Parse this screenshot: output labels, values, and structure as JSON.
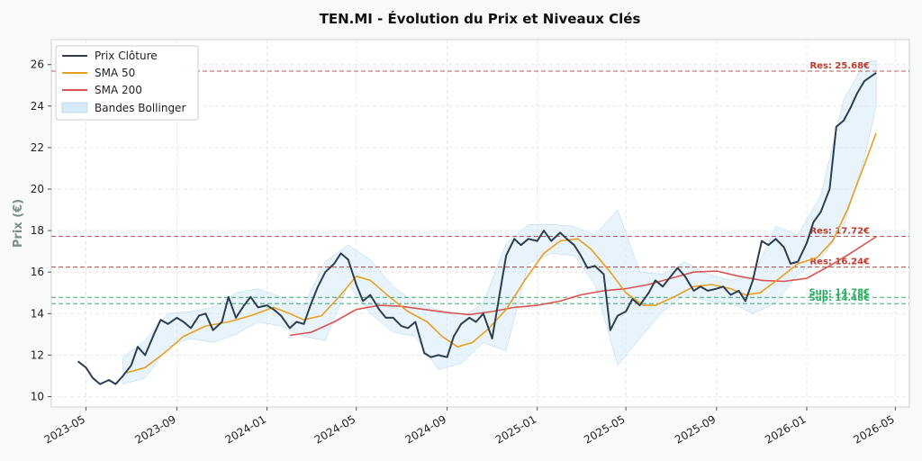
{
  "chart_data": {
    "type": "line",
    "title": "TEN.MI - Évolution du Prix et Niveaux Clés",
    "xlabel": "",
    "ylabel": "Prix (€)",
    "ylim": [
      9.5,
      27.2
    ],
    "xlim": [
      "2023-03-15",
      "2026-05-20"
    ],
    "yticks": [
      10,
      12,
      14,
      16,
      18,
      20,
      22,
      24,
      26
    ],
    "xticks": [
      "2023-05",
      "2023-09",
      "2024-01",
      "2024-05",
      "2024-09",
      "2025-01",
      "2025-05",
      "2025-09",
      "2026-01",
      "2026-05"
    ],
    "grid": true,
    "legend_position": "top-left",
    "colors": {
      "close": "#2c3e50",
      "sma50": "#e8a020",
      "sma200": "#d9534f",
      "bollinger": "#d6eaf8",
      "resistance": "#c0392b",
      "support": "#27ae60"
    },
    "series": [
      {
        "name": "Prix Clôture",
        "points": [
          [
            "2023-04-20",
            11.7
          ],
          [
            "2023-05-01",
            11.4
          ],
          [
            "2023-05-10",
            10.9
          ],
          [
            "2023-05-20",
            10.6
          ],
          [
            "2023-06-01",
            10.8
          ],
          [
            "2023-06-10",
            10.6
          ],
          [
            "2023-06-20",
            11.0
          ],
          [
            "2023-07-01",
            11.5
          ],
          [
            "2023-07-10",
            12.4
          ],
          [
            "2023-07-20",
            12.0
          ],
          [
            "2023-08-01",
            13.0
          ],
          [
            "2023-08-10",
            13.7
          ],
          [
            "2023-08-20",
            13.5
          ],
          [
            "2023-09-01",
            13.8
          ],
          [
            "2023-09-10",
            13.6
          ],
          [
            "2023-09-20",
            13.3
          ],
          [
            "2023-10-01",
            13.9
          ],
          [
            "2023-10-10",
            14.0
          ],
          [
            "2023-10-20",
            13.2
          ],
          [
            "2023-11-01",
            13.6
          ],
          [
            "2023-11-10",
            14.8
          ],
          [
            "2023-11-20",
            13.8
          ],
          [
            "2023-12-01",
            14.4
          ],
          [
            "2023-12-10",
            14.8
          ],
          [
            "2023-12-20",
            14.3
          ],
          [
            "2024-01-01",
            14.4
          ],
          [
            "2024-01-10",
            14.2
          ],
          [
            "2024-01-20",
            13.9
          ],
          [
            "2024-02-01",
            13.3
          ],
          [
            "2024-02-10",
            13.6
          ],
          [
            "2024-02-20",
            13.5
          ],
          [
            "2024-03-01",
            14.5
          ],
          [
            "2024-03-10",
            15.3
          ],
          [
            "2024-03-20",
            16.0
          ],
          [
            "2024-04-01",
            16.4
          ],
          [
            "2024-04-10",
            16.9
          ],
          [
            "2024-04-20",
            16.6
          ],
          [
            "2024-05-01",
            15.4
          ],
          [
            "2024-05-10",
            14.6
          ],
          [
            "2024-05-20",
            14.9
          ],
          [
            "2024-06-01",
            14.2
          ],
          [
            "2024-06-10",
            13.8
          ],
          [
            "2024-06-20",
            13.8
          ],
          [
            "2024-07-01",
            13.4
          ],
          [
            "2024-07-10",
            13.3
          ],
          [
            "2024-07-20",
            13.6
          ],
          [
            "2024-08-01",
            12.1
          ],
          [
            "2024-08-10",
            11.9
          ],
          [
            "2024-08-20",
            12.0
          ],
          [
            "2024-09-01",
            11.9
          ],
          [
            "2024-09-10",
            12.9
          ],
          [
            "2024-09-20",
            13.5
          ],
          [
            "2024-10-01",
            13.8
          ],
          [
            "2024-10-10",
            13.6
          ],
          [
            "2024-10-20",
            14.0
          ],
          [
            "2024-11-01",
            12.8
          ],
          [
            "2024-11-10",
            14.7
          ],
          [
            "2024-11-20",
            16.8
          ],
          [
            "2024-12-01",
            17.6
          ],
          [
            "2024-12-10",
            17.3
          ],
          [
            "2024-12-20",
            17.6
          ],
          [
            "2025-01-01",
            17.5
          ],
          [
            "2025-01-10",
            18.0
          ],
          [
            "2025-01-20",
            17.5
          ],
          [
            "2025-02-01",
            17.9
          ],
          [
            "2025-02-10",
            17.6
          ],
          [
            "2025-02-20",
            17.3
          ],
          [
            "2025-03-01",
            16.8
          ],
          [
            "2025-03-10",
            16.2
          ],
          [
            "2025-03-20",
            16.3
          ],
          [
            "2025-04-01",
            15.9
          ],
          [
            "2025-04-10",
            13.2
          ],
          [
            "2025-04-20",
            13.9
          ],
          [
            "2025-05-01",
            14.1
          ],
          [
            "2025-05-10",
            14.7
          ],
          [
            "2025-05-20",
            14.4
          ],
          [
            "2025-06-01",
            15.0
          ],
          [
            "2025-06-10",
            15.6
          ],
          [
            "2025-06-20",
            15.3
          ],
          [
            "2025-07-01",
            15.8
          ],
          [
            "2025-07-10",
            16.2
          ],
          [
            "2025-07-20",
            15.8
          ],
          [
            "2025-08-01",
            15.1
          ],
          [
            "2025-08-10",
            15.3
          ],
          [
            "2025-08-20",
            15.1
          ],
          [
            "2025-09-01",
            15.2
          ],
          [
            "2025-09-10",
            15.3
          ],
          [
            "2025-09-20",
            14.9
          ],
          [
            "2025-10-01",
            15.1
          ],
          [
            "2025-10-10",
            14.6
          ],
          [
            "2025-10-20",
            15.6
          ],
          [
            "2025-11-01",
            17.5
          ],
          [
            "2025-11-10",
            17.3
          ],
          [
            "2025-11-20",
            17.6
          ],
          [
            "2025-12-01",
            17.2
          ],
          [
            "2025-12-10",
            16.4
          ],
          [
            "2025-12-20",
            16.5
          ],
          [
            "2026-01-01",
            17.4
          ],
          [
            "2026-01-10",
            18.4
          ],
          [
            "2026-01-20",
            18.9
          ],
          [
            "2026-02-01",
            20.0
          ],
          [
            "2026-02-10",
            23.0
          ],
          [
            "2026-02-20",
            23.3
          ],
          [
            "2026-03-01",
            23.9
          ],
          [
            "2026-03-10",
            24.6
          ],
          [
            "2026-03-20",
            25.2
          ],
          [
            "2026-04-01",
            25.5
          ],
          [
            "2026-04-05",
            25.6
          ]
        ]
      },
      {
        "name": "SMA 50",
        "points": [
          [
            "2023-06-25",
            11.15
          ],
          [
            "2023-07-20",
            11.4
          ],
          [
            "2023-08-15",
            12.1
          ],
          [
            "2023-09-10",
            12.9
          ],
          [
            "2023-10-10",
            13.4
          ],
          [
            "2023-11-10",
            13.6
          ],
          [
            "2023-12-10",
            13.9
          ],
          [
            "2024-01-10",
            14.3
          ],
          [
            "2024-02-01",
            14.0
          ],
          [
            "2024-02-20",
            13.7
          ],
          [
            "2024-03-15",
            13.9
          ],
          [
            "2024-04-10",
            14.9
          ],
          [
            "2024-05-01",
            15.8
          ],
          [
            "2024-05-20",
            15.6
          ],
          [
            "2024-06-15",
            14.8
          ],
          [
            "2024-07-10",
            14.1
          ],
          [
            "2024-08-05",
            13.6
          ],
          [
            "2024-08-25",
            12.9
          ],
          [
            "2024-09-15",
            12.4
          ],
          [
            "2024-10-05",
            12.6
          ],
          [
            "2024-10-25",
            13.2
          ],
          [
            "2024-11-20",
            14.2
          ],
          [
            "2024-12-15",
            15.6
          ],
          [
            "2025-01-10",
            16.9
          ],
          [
            "2025-02-01",
            17.5
          ],
          [
            "2025-02-25",
            17.6
          ],
          [
            "2025-03-15",
            17.1
          ],
          [
            "2025-04-10",
            16.0
          ],
          [
            "2025-05-01",
            15.0
          ],
          [
            "2025-05-25",
            14.4
          ],
          [
            "2025-06-10",
            14.4
          ],
          [
            "2025-07-05",
            14.8
          ],
          [
            "2025-08-01",
            15.3
          ],
          [
            "2025-08-25",
            15.4
          ],
          [
            "2025-09-20",
            15.2
          ],
          [
            "2025-10-10",
            14.9
          ],
          [
            "2025-10-30",
            15.0
          ],
          [
            "2025-11-25",
            15.7
          ],
          [
            "2025-12-20",
            16.4
          ],
          [
            "2026-01-15",
            16.7
          ],
          [
            "2026-02-05",
            17.5
          ],
          [
            "2026-02-25",
            19.0
          ],
          [
            "2026-03-15",
            20.7
          ],
          [
            "2026-04-05",
            22.7
          ]
        ]
      },
      {
        "name": "SMA 200",
        "points": [
          [
            "2024-02-01",
            12.95
          ],
          [
            "2024-03-01",
            13.1
          ],
          [
            "2024-04-01",
            13.6
          ],
          [
            "2024-05-01",
            14.2
          ],
          [
            "2024-06-01",
            14.4
          ],
          [
            "2024-07-01",
            14.35
          ],
          [
            "2024-08-01",
            14.2
          ],
          [
            "2024-09-01",
            14.05
          ],
          [
            "2024-10-01",
            13.95
          ],
          [
            "2024-11-01",
            14.1
          ],
          [
            "2024-12-01",
            14.3
          ],
          [
            "2025-01-01",
            14.4
          ],
          [
            "2025-02-01",
            14.6
          ],
          [
            "2025-03-01",
            14.9
          ],
          [
            "2025-04-01",
            15.1
          ],
          [
            "2025-05-01",
            15.2
          ],
          [
            "2025-06-01",
            15.4
          ],
          [
            "2025-07-01",
            15.7
          ],
          [
            "2025-08-01",
            16.0
          ],
          [
            "2025-09-01",
            16.05
          ],
          [
            "2025-10-01",
            15.8
          ],
          [
            "2025-11-01",
            15.6
          ],
          [
            "2025-12-01",
            15.55
          ],
          [
            "2026-01-01",
            15.7
          ],
          [
            "2026-02-01",
            16.3
          ],
          [
            "2026-03-01",
            16.9
          ],
          [
            "2026-04-05",
            17.7
          ]
        ]
      }
    ],
    "bollinger": {
      "name": "Bandes Bollinger",
      "points": [
        [
          "2023-06-20",
          10.6,
          11.9
        ],
        [
          "2023-07-20",
          10.9,
          12.7
        ],
        [
          "2023-08-20",
          12.4,
          14.0
        ],
        [
          "2023-09-20",
          12.8,
          14.1
        ],
        [
          "2023-10-20",
          12.6,
          14.3
        ],
        [
          "2023-11-20",
          13.0,
          15.0
        ],
        [
          "2023-12-20",
          13.6,
          15.2
        ],
        [
          "2024-01-20",
          13.4,
          14.8
        ],
        [
          "2024-02-20",
          12.9,
          14.4
        ],
        [
          "2024-03-20",
          12.7,
          16.5
        ],
        [
          "2024-04-20",
          15.4,
          17.3
        ],
        [
          "2024-05-20",
          14.0,
          16.6
        ],
        [
          "2024-06-20",
          13.1,
          15.3
        ],
        [
          "2024-07-20",
          12.9,
          14.5
        ],
        [
          "2024-08-20",
          11.3,
          14.2
        ],
        [
          "2024-09-20",
          11.6,
          13.8
        ],
        [
          "2024-10-20",
          12.6,
          14.5
        ],
        [
          "2024-11-20",
          12.2,
          17.4
        ],
        [
          "2024-12-20",
          16.4,
          18.3
        ],
        [
          "2025-01-20",
          16.9,
          18.3
        ],
        [
          "2025-02-20",
          16.8,
          18.2
        ],
        [
          "2025-03-20",
          15.4,
          17.8
        ],
        [
          "2025-04-20",
          11.5,
          19.0
        ],
        [
          "2025-05-20",
          12.8,
          16.0
        ],
        [
          "2025-06-20",
          14.1,
          15.9
        ],
        [
          "2025-07-20",
          14.9,
          16.5
        ],
        [
          "2025-08-20",
          14.6,
          15.9
        ],
        [
          "2025-09-20",
          14.5,
          15.6
        ],
        [
          "2025-10-20",
          14.0,
          15.8
        ],
        [
          "2025-11-20",
          14.5,
          18.2
        ],
        [
          "2025-12-20",
          15.9,
          17.8
        ],
        [
          "2026-01-20",
          16.6,
          19.7
        ],
        [
          "2026-02-20",
          18.2,
          24.3
        ],
        [
          "2026-03-20",
          21.5,
          26.1
        ],
        [
          "2026-04-05",
          24.0,
          26.2
        ]
      ]
    },
    "levels": [
      {
        "type": "resistance",
        "value": 25.68,
        "label": "Res: 25.68€"
      },
      {
        "type": "resistance",
        "value": 17.72,
        "label": "Res: 17.72€"
      },
      {
        "type": "resistance",
        "value": 16.24,
        "label": "Res: 16.24€"
      },
      {
        "type": "support",
        "value": 14.78,
        "label": "Sup: 14.78€"
      },
      {
        "type": "support",
        "value": 14.48,
        "label": "Sup: 14.48€"
      }
    ]
  }
}
